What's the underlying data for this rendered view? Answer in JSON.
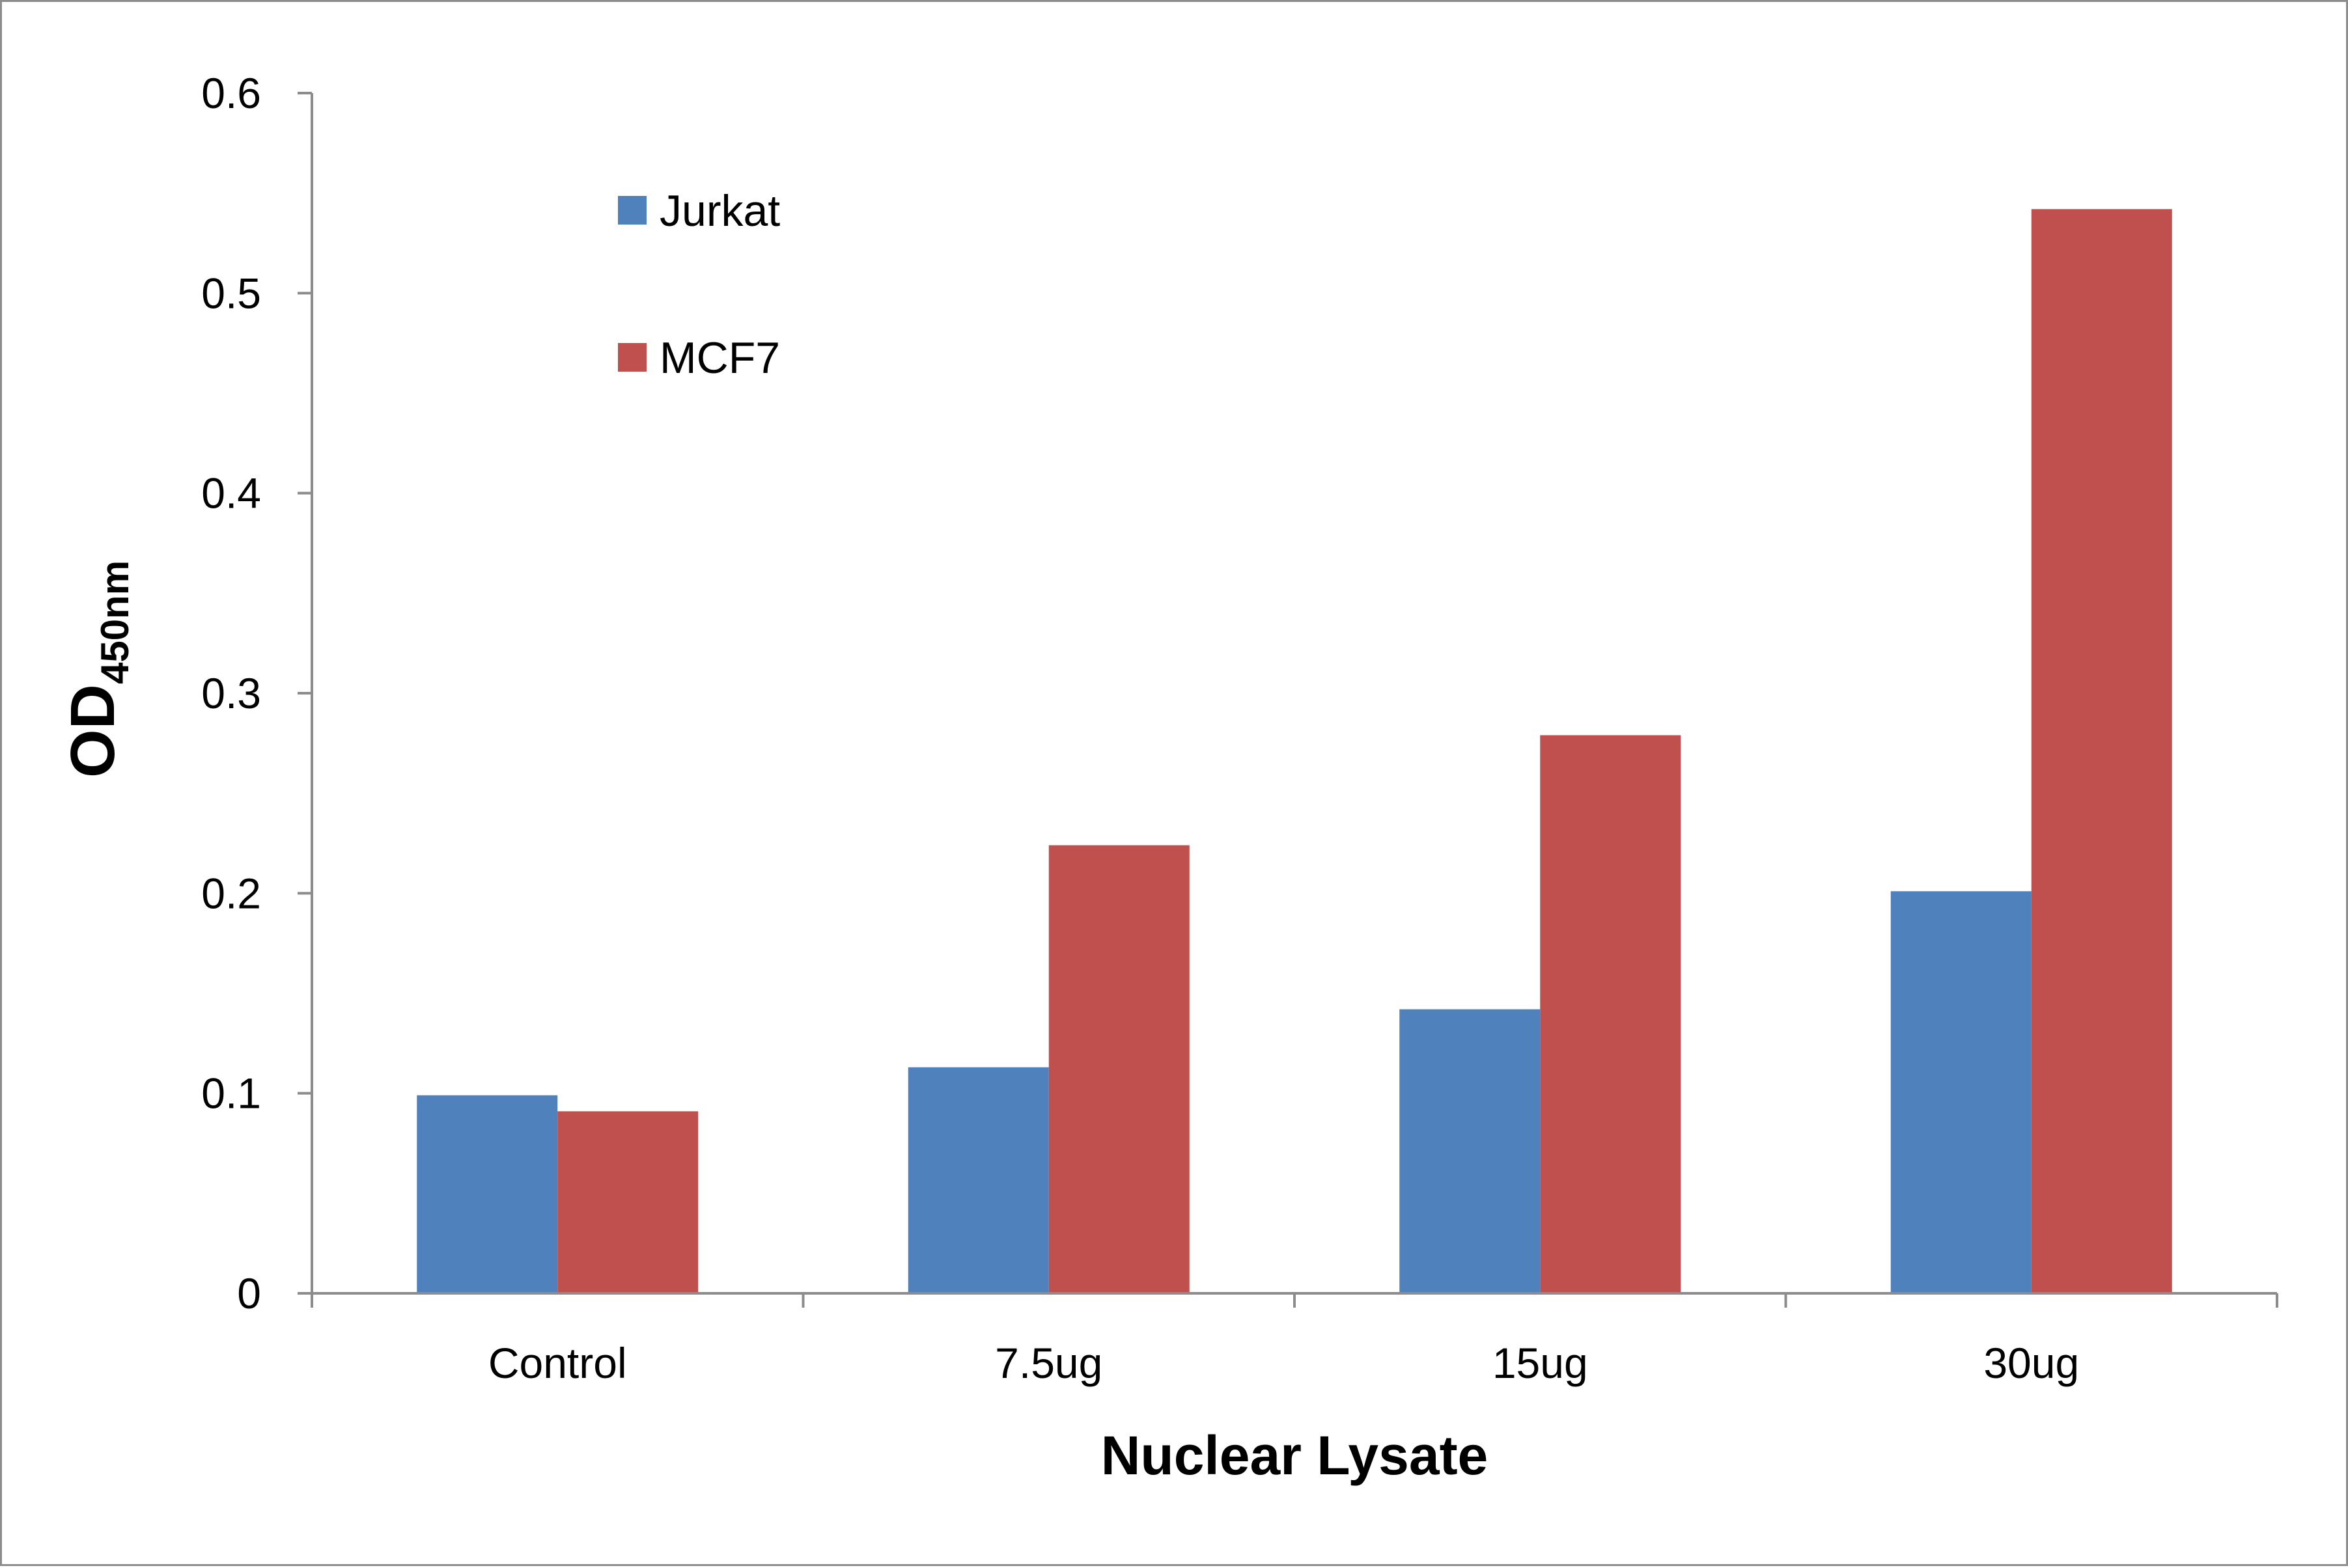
{
  "chart_data": {
    "type": "bar",
    "title": "",
    "xlabel": "Nuclear Lysate",
    "ylabel": "OD",
    "ylabel_subscript": "450nm",
    "categories": [
      "Control",
      "7.5ug",
      "15ug",
      "30ug"
    ],
    "series": [
      {
        "name": "Jurkat",
        "color": "#4f81bd",
        "values": [
          0.099,
          0.113,
          0.142,
          0.201
        ]
      },
      {
        "name": "MCF7",
        "color": "#c0504d",
        "values": [
          0.091,
          0.224,
          0.279,
          0.542
        ]
      }
    ],
    "ylim": [
      0,
      0.6
    ],
    "yticks": [
      "0",
      "0.1",
      "0.2",
      "0.3",
      "0.4",
      "0.5",
      "0.6"
    ],
    "grid": false,
    "legend_position": "top-left"
  }
}
